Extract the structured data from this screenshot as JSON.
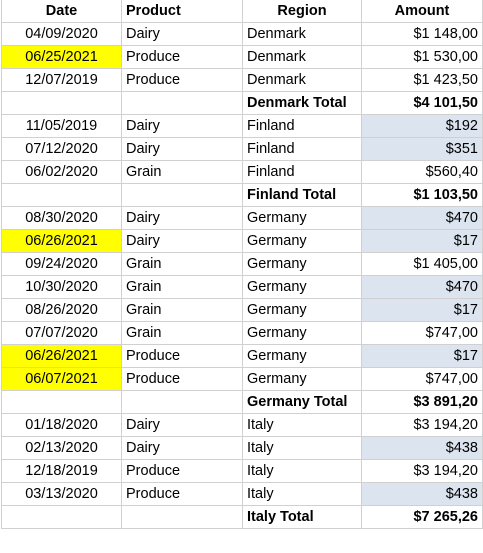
{
  "headers": [
    "Date",
    "Product",
    "Region",
    "Amount"
  ],
  "colors": {
    "highlight_yellow": "#ffff00",
    "highlight_blue": "#dbe4ef"
  },
  "rows": [
    {
      "date": "04/09/2020",
      "product": "Dairy",
      "region": "Denmark",
      "amount": "$1 148,00",
      "date_hl": "",
      "amount_hl": ""
    },
    {
      "date": "06/25/2021",
      "product": "Produce",
      "region": "Denmark",
      "amount": "$1 530,00",
      "date_hl": "yellow",
      "amount_hl": ""
    },
    {
      "date": "12/07/2019",
      "product": "Produce",
      "region": "Denmark",
      "amount": "$1 423,50",
      "date_hl": "",
      "amount_hl": ""
    },
    {
      "total": true,
      "date": "",
      "product": "",
      "region": "Denmark Total",
      "amount": "$4 101,50"
    },
    {
      "date": "11/05/2019",
      "product": "Dairy",
      "region": "Finland",
      "amount": "$192",
      "date_hl": "",
      "amount_hl": "blue"
    },
    {
      "date": "07/12/2020",
      "product": "Dairy",
      "region": "Finland",
      "amount": "$351",
      "date_hl": "",
      "amount_hl": "blue"
    },
    {
      "date": "06/02/2020",
      "product": "Grain",
      "region": "Finland",
      "amount": "$560,40",
      "date_hl": "",
      "amount_hl": ""
    },
    {
      "total": true,
      "date": "",
      "product": "",
      "region": "Finland Total",
      "amount": "$1 103,50"
    },
    {
      "date": "08/30/2020",
      "product": "Dairy",
      "region": "Germany",
      "amount": "$470",
      "date_hl": "",
      "amount_hl": "blue"
    },
    {
      "date": "06/26/2021",
      "product": "Dairy",
      "region": "Germany",
      "amount": "$17",
      "date_hl": "yellow",
      "amount_hl": "blue"
    },
    {
      "date": "09/24/2020",
      "product": "Grain",
      "region": "Germany",
      "amount": "$1 405,00",
      "date_hl": "",
      "amount_hl": ""
    },
    {
      "date": "10/30/2020",
      "product": "Grain",
      "region": "Germany",
      "amount": "$470",
      "date_hl": "",
      "amount_hl": "blue"
    },
    {
      "date": "08/26/2020",
      "product": "Grain",
      "region": "Germany",
      "amount": "$17",
      "date_hl": "",
      "amount_hl": "blue"
    },
    {
      "date": "07/07/2020",
      "product": "Grain",
      "region": "Germany",
      "amount": "$747,00",
      "date_hl": "",
      "amount_hl": ""
    },
    {
      "date": "06/26/2021",
      "product": "Produce",
      "region": "Germany",
      "amount": "$17",
      "date_hl": "yellow",
      "amount_hl": "blue"
    },
    {
      "date": "06/07/2021",
      "product": "Produce",
      "region": "Germany",
      "amount": "$747,00",
      "date_hl": "yellow",
      "amount_hl": ""
    },
    {
      "total": true,
      "date": "",
      "product": "",
      "region": "Germany Total",
      "amount": "$3 891,20"
    },
    {
      "date": "01/18/2020",
      "product": "Dairy",
      "region": "Italy",
      "amount": "$3 194,20",
      "date_hl": "",
      "amount_hl": ""
    },
    {
      "date": "02/13/2020",
      "product": "Dairy",
      "region": "Italy",
      "amount": "$438",
      "date_hl": "",
      "amount_hl": "blue"
    },
    {
      "date": "12/18/2019",
      "product": "Produce",
      "region": "Italy",
      "amount": "$3 194,20",
      "date_hl": "",
      "amount_hl": ""
    },
    {
      "date": "03/13/2020",
      "product": "Produce",
      "region": "Italy",
      "amount": "$438",
      "date_hl": "",
      "amount_hl": "blue"
    },
    {
      "total": true,
      "date": "",
      "product": "",
      "region": "Italy Total",
      "amount": "$7 265,26"
    }
  ]
}
